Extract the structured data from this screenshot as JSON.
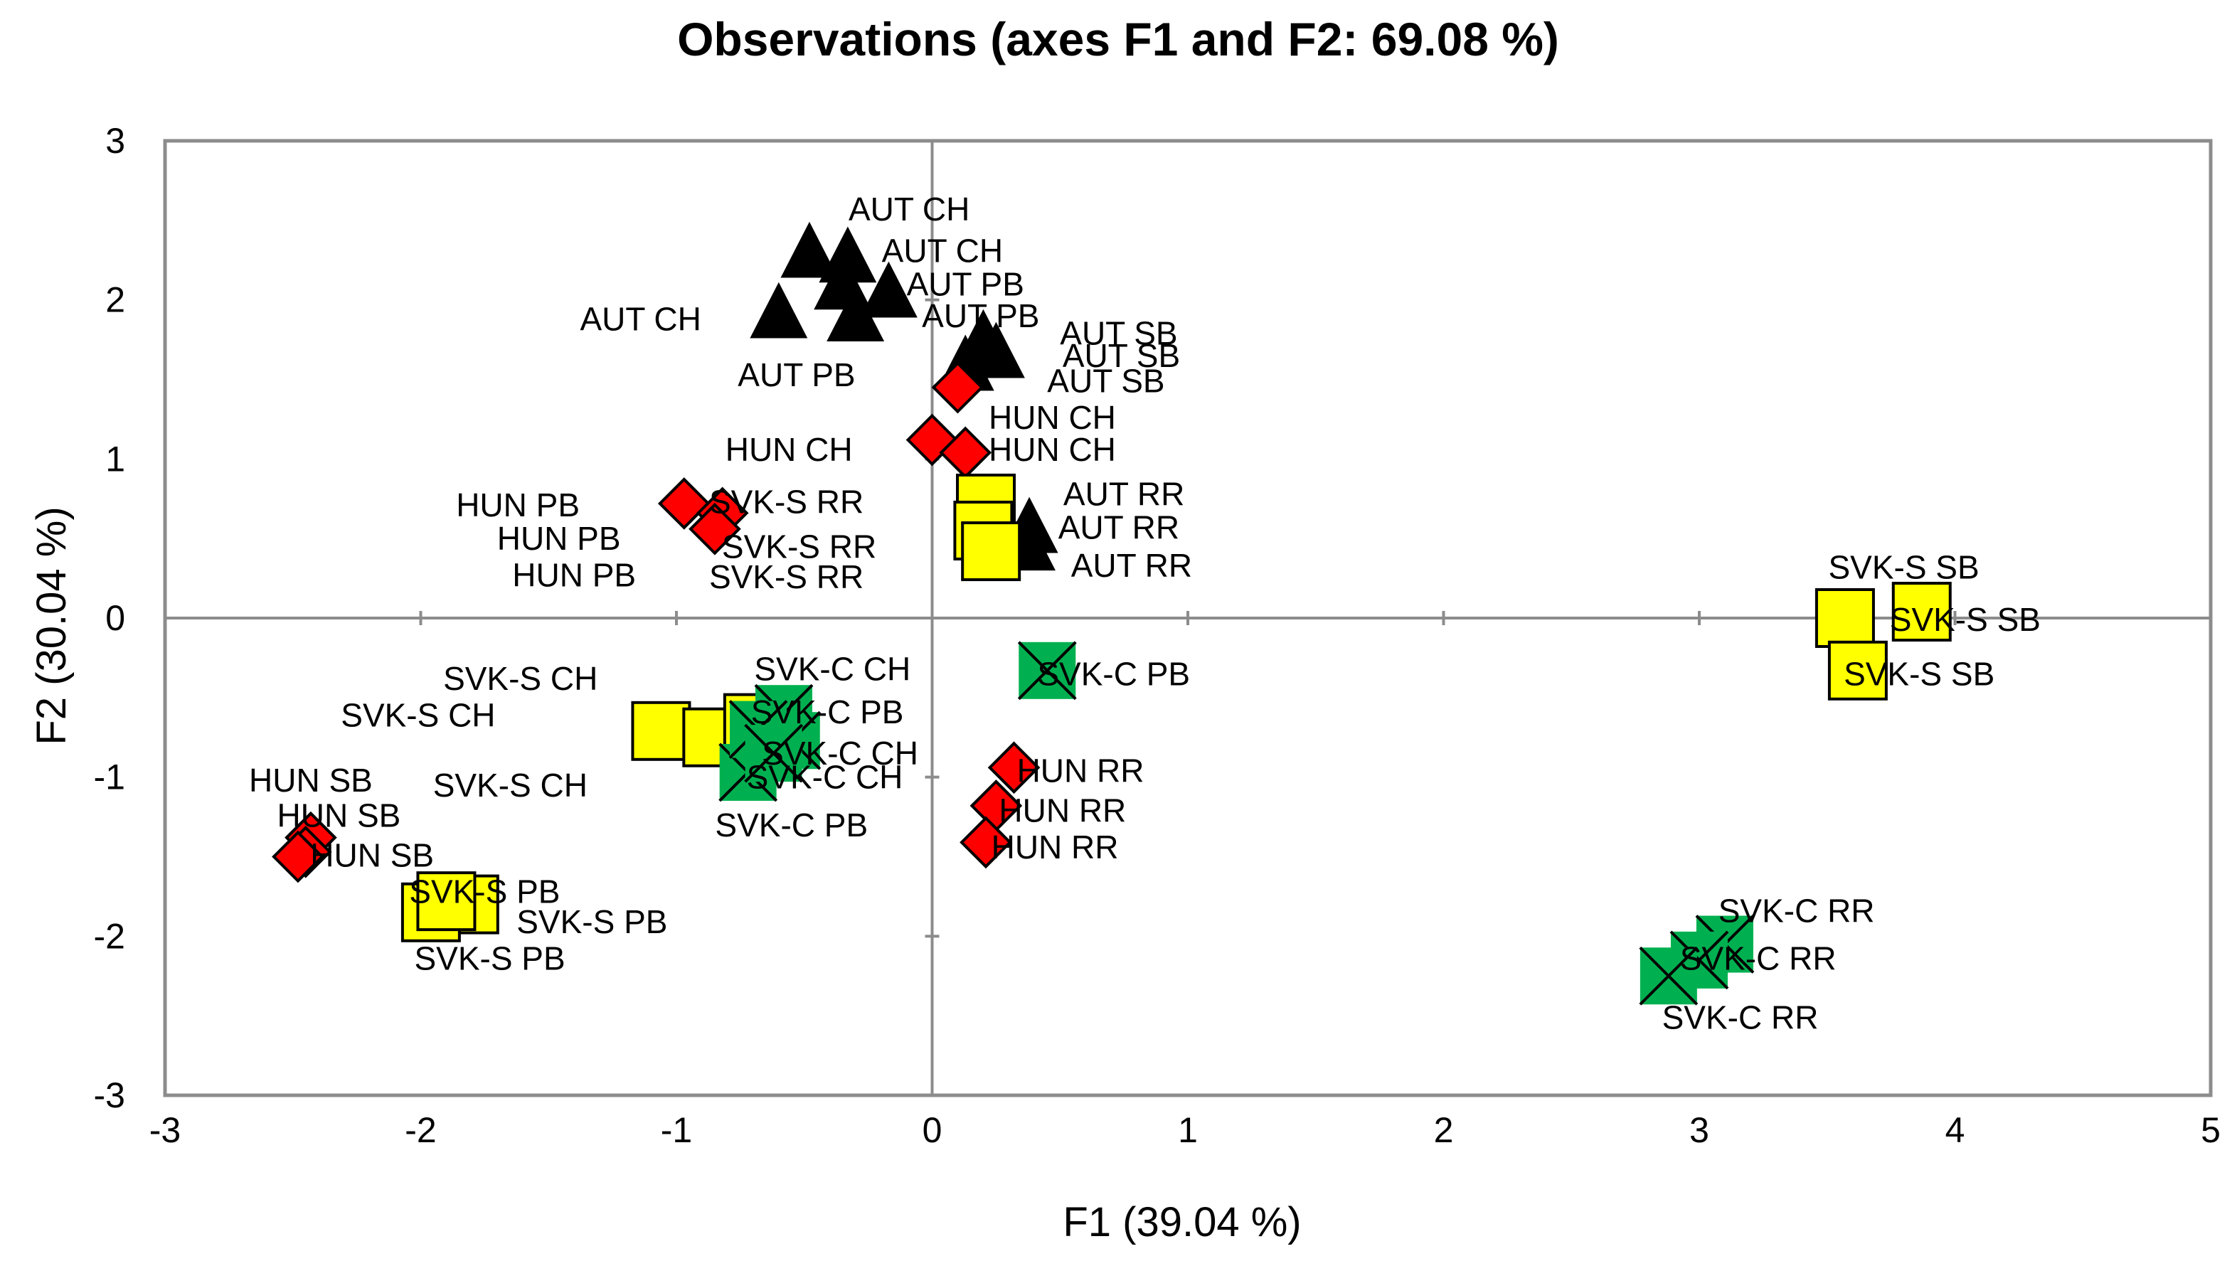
{
  "chart_data": {
    "type": "scatter",
    "title": "Observations (axes F1 and F2: 69.08 %)",
    "xlabel": "F1 (39.04 %)",
    "ylabel": "F2 (30.04 %)",
    "xlim": [
      -3,
      5
    ],
    "ylim": [
      -3,
      3
    ],
    "xticks": [
      -3,
      -2,
      -1,
      0,
      1,
      2,
      3,
      4,
      5
    ],
    "yticks": [
      -3,
      -2,
      -1,
      0,
      1,
      2,
      3
    ],
    "grid": false,
    "series": [
      {
        "name": "AUT",
        "marker": "triangle",
        "color": "#000000",
        "points": [
          {
            "label": "AUT CH",
            "x": -0.48,
            "y": 2.28
          },
          {
            "label": "AUT CH",
            "x": -0.33,
            "y": 2.25
          },
          {
            "label": "AUT CH",
            "x": -0.6,
            "y": 1.9
          },
          {
            "label": "AUT PB",
            "x": -0.17,
            "y": 2.03
          },
          {
            "label": "AUT PB",
            "x": -0.35,
            "y": 2.08
          },
          {
            "label": "AUT PB",
            "x": -0.3,
            "y": 1.88
          },
          {
            "label": "AUT SB",
            "x": 0.2,
            "y": 1.73
          },
          {
            "label": "AUT SB",
            "x": 0.25,
            "y": 1.65
          },
          {
            "label": "AUT SB",
            "x": 0.13,
            "y": 1.57
          },
          {
            "label": "AUT RR",
            "x": 0.38,
            "y": 0.55
          },
          {
            "label": "AUT RR",
            "x": 0.24,
            "y": 0.53
          },
          {
            "label": "AUT RR",
            "x": 0.37,
            "y": 0.44
          }
        ]
      },
      {
        "name": "HUN",
        "marker": "diamond",
        "color": "#ff0000",
        "points": [
          {
            "label": "HUN CH",
            "x": 0.1,
            "y": 1.45
          },
          {
            "label": "HUN CH",
            "x": 0.0,
            "y": 1.12
          },
          {
            "label": "HUN CH",
            "x": 0.13,
            "y": 1.04
          },
          {
            "label": "HUN PB",
            "x": -0.97,
            "y": 0.72
          },
          {
            "label": "HUN PB",
            "x": -0.82,
            "y": 0.66
          },
          {
            "label": "HUN PB",
            "x": -0.85,
            "y": 0.56
          },
          {
            "label": "HUN SB",
            "x": -2.43,
            "y": -1.38
          },
          {
            "label": "HUN SB",
            "x": -2.45,
            "y": -1.47
          },
          {
            "label": "HUN SB",
            "x": -2.48,
            "y": -1.5
          },
          {
            "label": "HUN RR",
            "x": 0.32,
            "y": -0.94
          },
          {
            "label": "HUN RR",
            "x": 0.25,
            "y": -1.18
          },
          {
            "label": "HUN RR",
            "x": 0.21,
            "y": -1.41
          }
        ]
      },
      {
        "name": "SVK-S",
        "marker": "square",
        "color": "#ffff00",
        "points": [
          {
            "label": "SVK-S SB",
            "x": 3.57,
            "y": 0.0
          },
          {
            "label": "SVK-S SB",
            "x": 3.87,
            "y": 0.04
          },
          {
            "label": "SVK-S SB",
            "x": 3.62,
            "y": -0.33
          },
          {
            "label": "SVK-S RR",
            "x": 0.21,
            "y": 0.72
          },
          {
            "label": "SVK-S RR",
            "x": 0.2,
            "y": 0.55
          },
          {
            "label": "SVK-S RR",
            "x": 0.23,
            "y": 0.42
          },
          {
            "label": "SVK-S CH",
            "x": -1.06,
            "y": -0.71
          },
          {
            "label": "SVK-S CH",
            "x": -0.86,
            "y": -0.75
          },
          {
            "label": "SVK-S CH",
            "x": -0.7,
            "y": -0.66
          },
          {
            "label": "SVK-S PB",
            "x": -1.81,
            "y": -1.8
          },
          {
            "label": "SVK-S PB",
            "x": -1.96,
            "y": -1.85
          },
          {
            "label": "SVK-S PB",
            "x": -1.9,
            "y": -1.78
          }
        ]
      },
      {
        "name": "SVK-C",
        "marker": "x-square",
        "color": "#00b050",
        "points": [
          {
            "label": "SVK-C PB",
            "x": 0.45,
            "y": -0.33
          },
          {
            "label": "SVK-C PB",
            "x": -0.58,
            "y": -0.6
          },
          {
            "label": "SVK-C PB",
            "x": -0.72,
            "y": -0.97
          },
          {
            "label": "SVK-C CH",
            "x": -0.55,
            "y": -0.77
          },
          {
            "label": "SVK-C CH",
            "x": -0.68,
            "y": -0.7
          },
          {
            "label": "SVK-C CH",
            "x": -0.62,
            "y": -0.85
          },
          {
            "label": "SVK-C RR",
            "x": 3.1,
            "y": -2.05
          },
          {
            "label": "SVK-C RR",
            "x": 3.0,
            "y": -2.15
          },
          {
            "label": "SVK-C RR",
            "x": 2.88,
            "y": -2.25
          }
        ]
      }
    ],
    "labels": [
      {
        "text": "AUT CH",
        "x": -0.09,
        "y": 2.57
      },
      {
        "text": "AUT CH",
        "x": 0.04,
        "y": 2.31
      },
      {
        "text": "AUT PB",
        "x": 0.13,
        "y": 2.1
      },
      {
        "text": "AUT CH",
        "x": -1.14,
        "y": 1.88
      },
      {
        "text": "AUT PB",
        "x": 0.19,
        "y": 1.9
      },
      {
        "text": "AUT SB",
        "x": 0.73,
        "y": 1.79
      },
      {
        "text": "AUT SB",
        "x": 0.74,
        "y": 1.65
      },
      {
        "text": "AUT SB",
        "x": 0.68,
        "y": 1.49
      },
      {
        "text": "AUT PB",
        "x": -0.53,
        "y": 1.53
      },
      {
        "text": "HUN CH",
        "x": 0.47,
        "y": 1.26
      },
      {
        "text": "HUN CH",
        "x": -0.56,
        "y": 1.06
      },
      {
        "text": "HUN CH",
        "x": 0.47,
        "y": 1.06
      },
      {
        "text": "AUT RR",
        "x": 0.75,
        "y": 0.78
      },
      {
        "text": "HUN PB",
        "x": -1.62,
        "y": 0.71
      },
      {
        "text": "SVK-S RR",
        "x": -0.57,
        "y": 0.73
      },
      {
        "text": "AUT RR",
        "x": 0.73,
        "y": 0.57
      },
      {
        "text": "HUN PB",
        "x": -1.46,
        "y": 0.5
      },
      {
        "text": "SVK-S RR",
        "x": -0.52,
        "y": 0.45
      },
      {
        "text": "AUT RR",
        "x": 0.78,
        "y": 0.33
      },
      {
        "text": "HUN PB",
        "x": -1.4,
        "y": 0.27
      },
      {
        "text": "SVK-S RR",
        "x": -0.57,
        "y": 0.26
      },
      {
        "text": "SVK-S SB",
        "x": 3.8,
        "y": 0.32
      },
      {
        "text": "SVK-S SB",
        "x": 4.04,
        "y": -0.01
      },
      {
        "text": "SVK-S SB",
        "x": 3.86,
        "y": -0.35
      },
      {
        "text": "SVK-C CH",
        "x": -0.39,
        "y": -0.32
      },
      {
        "text": "SVK-C PB",
        "x": 0.71,
        "y": -0.35
      },
      {
        "text": "SVK-S CH",
        "x": -1.61,
        "y": -0.38
      },
      {
        "text": "SVK-S CH",
        "x": -2.01,
        "y": -0.61
      },
      {
        "text": "SVK-C PB",
        "x": -0.41,
        "y": -0.59
      },
      {
        "text": "SVK-C CH",
        "x": -0.36,
        "y": -0.85
      },
      {
        "text": "SVK-S CH",
        "x": -1.65,
        "y": -1.05
      },
      {
        "text": "SVK-C CH",
        "x": -0.42,
        "y": -1.0
      },
      {
        "text": "HUN SB",
        "x": -2.43,
        "y": -1.02
      },
      {
        "text": "HUN RR",
        "x": 0.58,
        "y": -0.96
      },
      {
        "text": "HUN SB",
        "x": -2.32,
        "y": -1.24
      },
      {
        "text": "SVK-C PB",
        "x": -0.55,
        "y": -1.3
      },
      {
        "text": "HUN RR",
        "x": 0.51,
        "y": -1.21
      },
      {
        "text": "HUN RR",
        "x": 0.48,
        "y": -1.44
      },
      {
        "text": "HUN SB",
        "x": -2.19,
        "y": -1.49
      },
      {
        "text": "SVK-S PB",
        "x": -1.75,
        "y": -1.72
      },
      {
        "text": "SVK-S PB",
        "x": -1.33,
        "y": -1.91
      },
      {
        "text": "SVK-S PB",
        "x": -1.73,
        "y": -2.14
      },
      {
        "text": "SVK-C RR",
        "x": 3.38,
        "y": -1.84
      },
      {
        "text": "SVK-C RR",
        "x": 3.23,
        "y": -2.14
      },
      {
        "text": "SVK-C RR",
        "x": 3.16,
        "y": -2.51
      }
    ]
  }
}
